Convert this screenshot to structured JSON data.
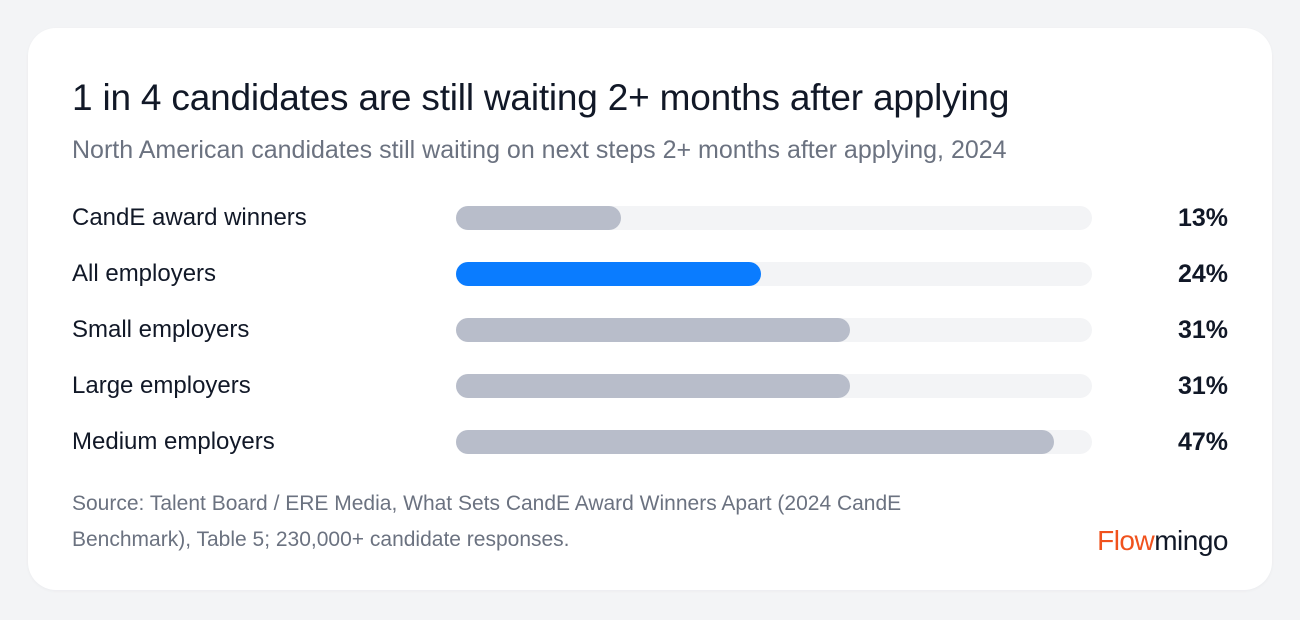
{
  "colors": {
    "page_background": "#f3f4f6",
    "card_background": "#ffffff",
    "highlight_bar": "#0a7cff",
    "default_bar": "#b8bdca",
    "track": "#f3f4f6",
    "brand_accent": "#f0521d"
  },
  "chart_data": {
    "type": "bar",
    "orientation": "horizontal",
    "title": "1 in 4 candidates are still waiting 2+ months after applying",
    "subtitle": "North American candidates still waiting on next steps 2+ months after applying, 2024",
    "categories": [
      "CandE award winners",
      "All employers",
      "Small employers",
      "Large employers",
      "Medium employers"
    ],
    "values": [
      13,
      24,
      31,
      31,
      47
    ],
    "value_labels": [
      "13%",
      "24%",
      "31%",
      "31%",
      "47%"
    ],
    "highlighted": "All employers",
    "xlim": [
      0,
      50
    ],
    "grid": false,
    "legend": "none"
  },
  "footer": {
    "source": "Source: Talent Board / ERE Media, What Sets CandE Award Winners Apart (2024 CandE Benchmark), Table 5; 230,000+ candidate responses.",
    "brand_part1": "Flow",
    "brand_part2": "mingo"
  }
}
